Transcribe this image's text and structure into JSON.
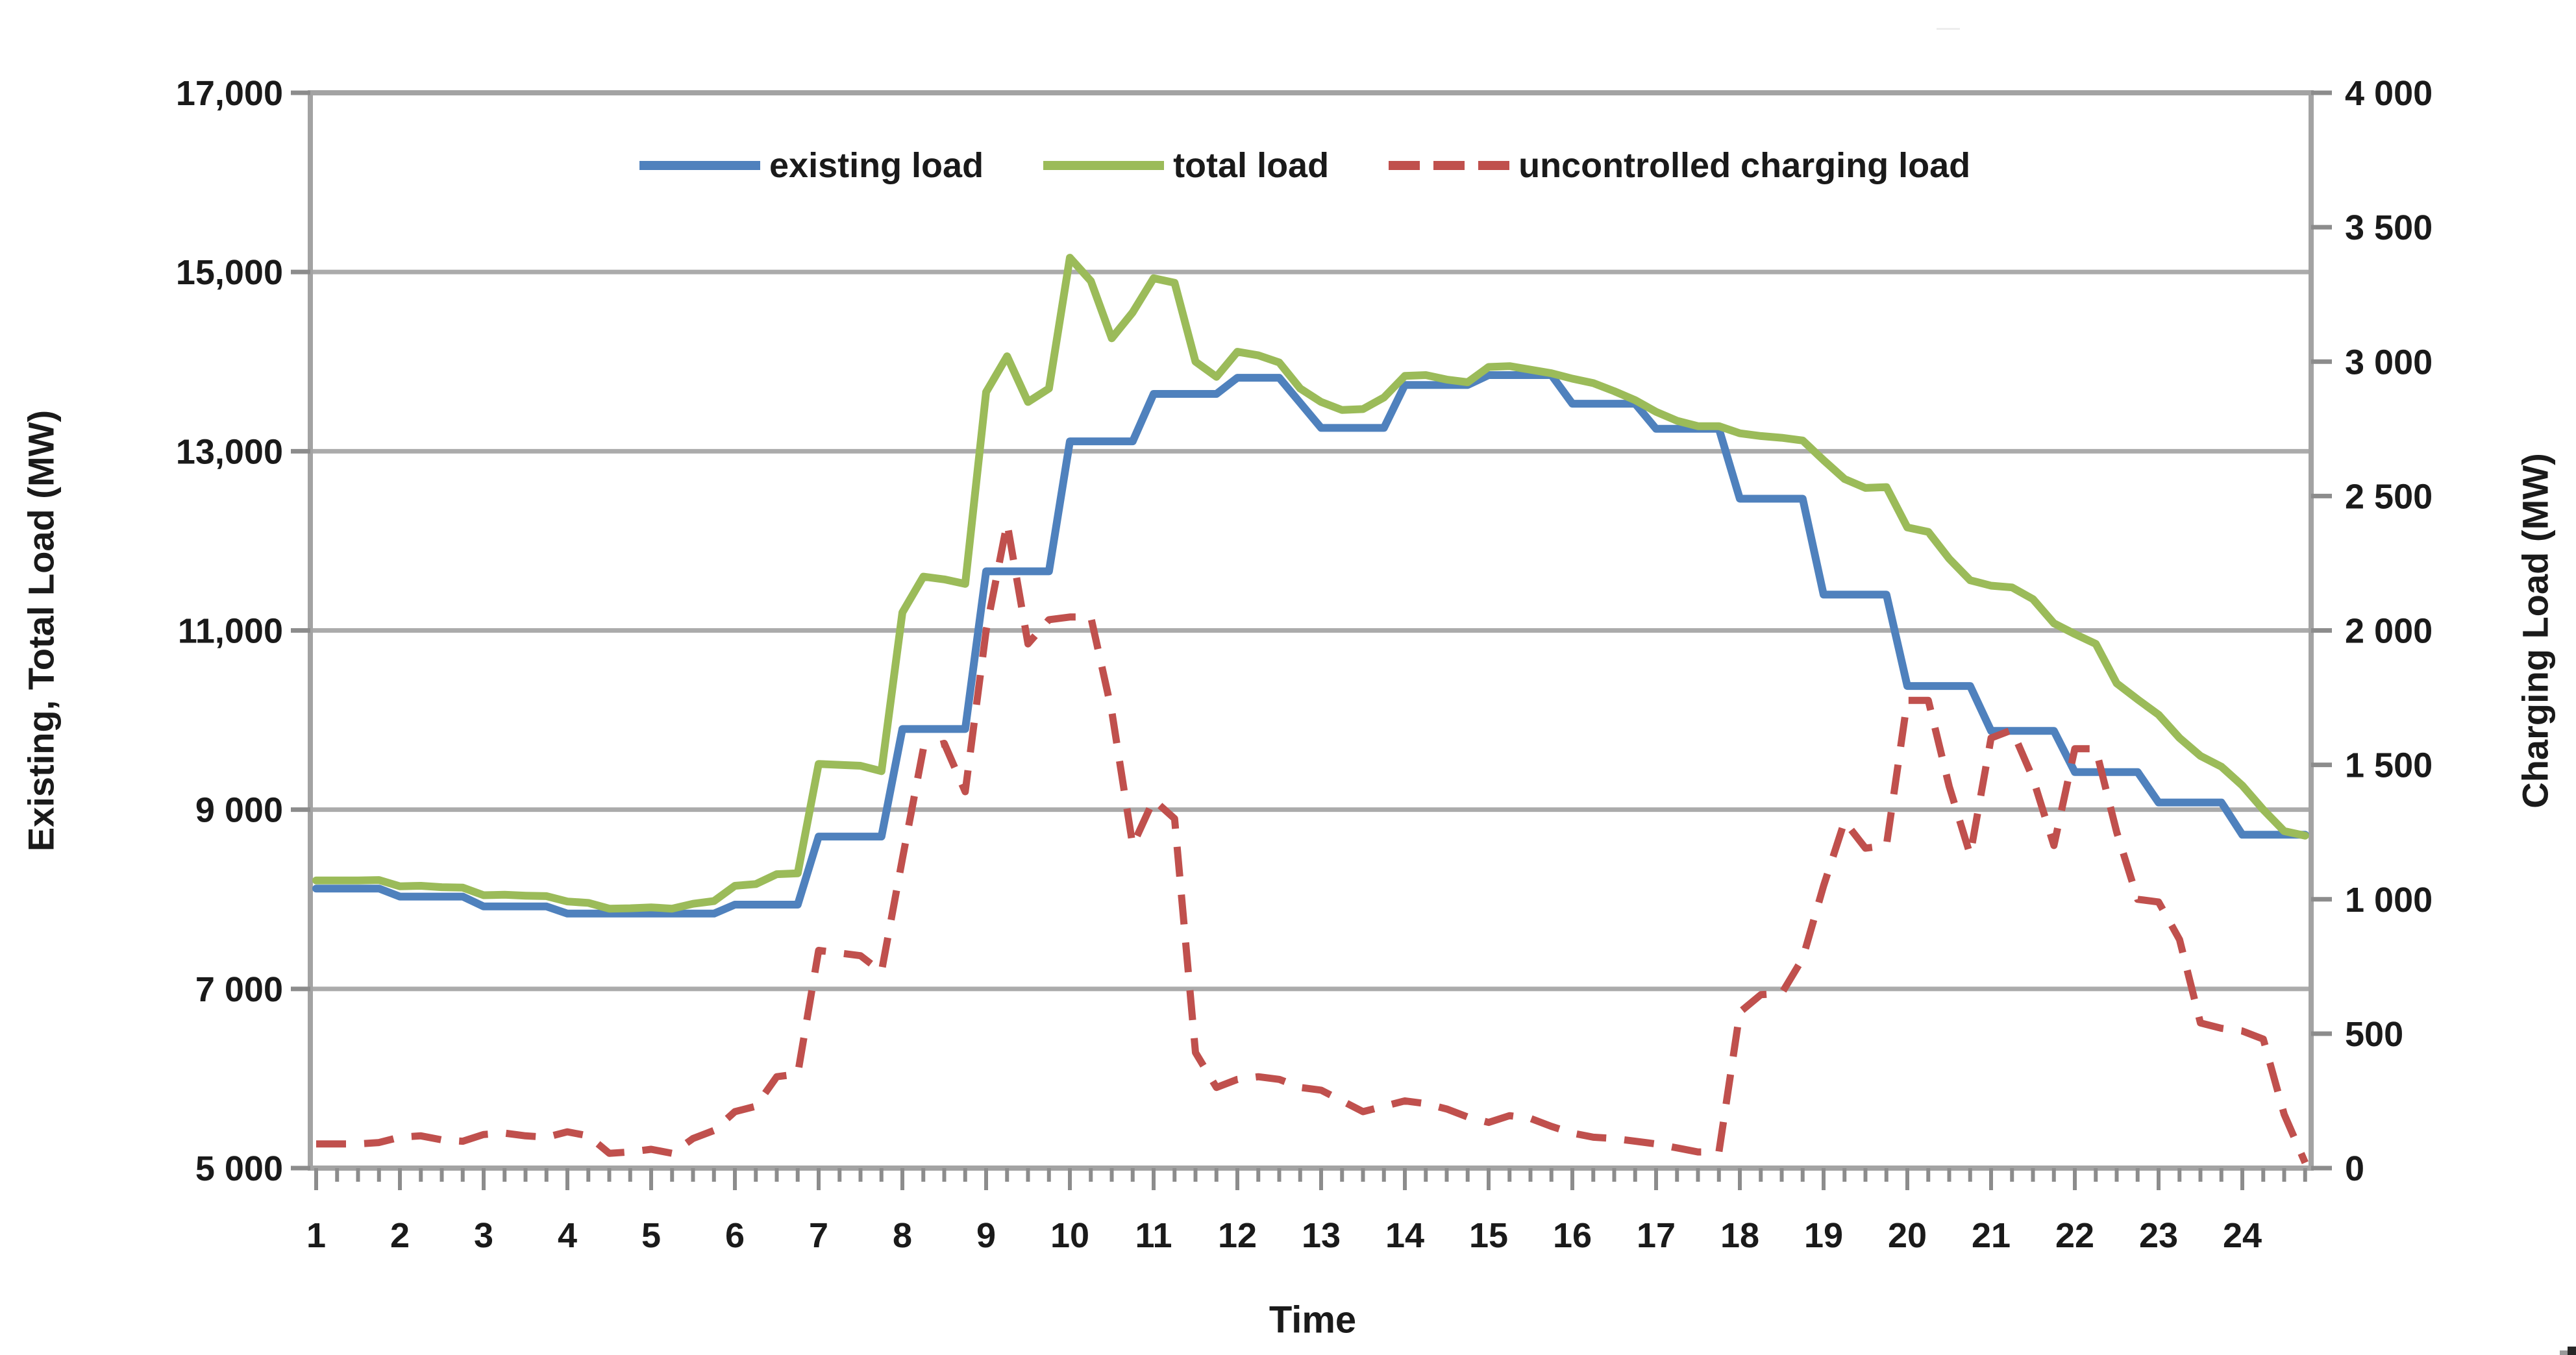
{
  "chart_data": {
    "type": "line",
    "title": "",
    "xlabel": "Time",
    "ylabel_left": "Existing, Total Load (MW)",
    "ylabel_right": "Charging Load (MW)",
    "grid": "horizontal",
    "legend_position": "top-center",
    "x_start": 1.0,
    "x_step": 0.25,
    "x_tick_labels": [
      "1",
      "2",
      "3",
      "4",
      "5",
      "6",
      "7",
      "8",
      "9",
      "10",
      "11",
      "12",
      "13",
      "14",
      "15",
      "16",
      "17",
      "18",
      "19",
      "20",
      "21",
      "22",
      "23",
      "24"
    ],
    "y_left_axis": {
      "min": 5000,
      "max": 17000,
      "tick_values": [
        17000,
        15000,
        13000,
        11000,
        9000,
        7000,
        5000
      ],
      "tick_labels": [
        "17,000",
        "15,000",
        "13,000",
        "11,000",
        "9 000",
        "7 000",
        "5 000"
      ]
    },
    "y_right_axis": {
      "min": 0,
      "max": 4000,
      "tick_values": [
        4000,
        3500,
        3000,
        2500,
        2000,
        1500,
        1000,
        500,
        0
      ],
      "tick_labels": [
        "4 000",
        "3 500",
        "3 000",
        "2 500",
        "2 000",
        "1 500",
        "1 000",
        "500",
        "0"
      ]
    },
    "colors": {
      "existing": "#4F81BD",
      "total": "#9BBB59",
      "uncontrolled": "#C0504D",
      "grid": "#ABABAB",
      "border": "#A3A3A3",
      "tick": "#8C8C8C",
      "text": "#1A1A1A"
    },
    "series": [
      {
        "name": "existing load",
        "axis": "left",
        "color": "#4F81BD",
        "style": "solid",
        "values": [
          8120,
          8120,
          8120,
          8120,
          8030,
          8030,
          8030,
          8030,
          7920,
          7920,
          7920,
          7920,
          7840,
          7840,
          7840,
          7840,
          7840,
          7840,
          7840,
          7840,
          7940,
          7940,
          7940,
          7940,
          8700,
          8700,
          8700,
          8700,
          9900,
          9900,
          9900,
          9900,
          11660,
          11660,
          11660,
          11660,
          13110,
          13110,
          13110,
          13110,
          13640,
          13640,
          13640,
          13640,
          13820,
          13820,
          13820,
          13540,
          13260,
          13260,
          13260,
          13260,
          13740,
          13740,
          13740,
          13740,
          13850,
          13850,
          13850,
          13850,
          13530,
          13530,
          13530,
          13530,
          13250,
          13250,
          13250,
          13250,
          12470,
          12470,
          12470,
          12470,
          11400,
          11400,
          11400,
          11400,
          10380,
          10380,
          10380,
          10380,
          9880,
          9880,
          9880,
          9880,
          9420,
          9420,
          9420,
          9420,
          9080,
          9080,
          9080,
          9080,
          8720,
          8720,
          8720,
          8720
        ]
      },
      {
        "name": "total load",
        "axis": "left",
        "color": "#9BBB59",
        "style": "solid",
        "values": [
          8210,
          8210,
          8210,
          8215,
          8145,
          8150,
          8135,
          8130,
          8045,
          8050,
          8040,
          8035,
          7975,
          7960,
          7895,
          7900,
          7910,
          7895,
          7950,
          7980,
          8150,
          8170,
          8280,
          8290,
          9510,
          9500,
          9490,
          9430,
          11200,
          11600,
          11570,
          11520,
          13660,
          14060,
          13550,
          13700,
          15160,
          14900,
          14260,
          14550,
          14930,
          14880,
          14000,
          13830,
          14110,
          14070,
          13990,
          13700,
          13550,
          13460,
          13470,
          13600,
          13840,
          13850,
          13800,
          13770,
          13940,
          13950,
          13910,
          13870,
          13810,
          13760,
          13670,
          13570,
          13440,
          13340,
          13280,
          13280,
          13200,
          13170,
          13150,
          13120,
          12900,
          12690,
          12590,
          12600,
          12150,
          12100,
          11800,
          11560,
          11500,
          11480,
          11350,
          11080,
          10960,
          10850,
          10410,
          10230,
          10060,
          9800,
          9600,
          9480,
          9270,
          9000,
          8760,
          8710
        ]
      },
      {
        "name": "uncontrolled charging load",
        "axis": "right",
        "color": "#C0504D",
        "style": "dashed",
        "values": [
          90,
          90,
          90,
          95,
          115,
          120,
          105,
          100,
          125,
          130,
          120,
          115,
          135,
          120,
          55,
          60,
          70,
          55,
          110,
          140,
          210,
          230,
          340,
          350,
          810,
          800,
          790,
          730,
          1150,
          1560,
          1580,
          1400,
          2000,
          2400,
          1950,
          2040,
          2050,
          2050,
          1700,
          1200,
          1370,
          1300,
          430,
          300,
          330,
          340,
          330,
          300,
          290,
          250,
          210,
          230,
          250,
          240,
          220,
          190,
          170,
          195,
          185,
          155,
          130,
          115,
          110,
          100,
          90,
          75,
          60,
          60,
          580,
          645,
          650,
          780,
          1050,
          1290,
          1190,
          1200,
          1740,
          1740,
          1420,
          1165,
          1600,
          1630,
          1450,
          1200,
          1560,
          1560,
          1250,
          1000,
          990,
          850,
          540,
          520,
          510,
          480,
          200,
          20
        ]
      }
    ]
  }
}
